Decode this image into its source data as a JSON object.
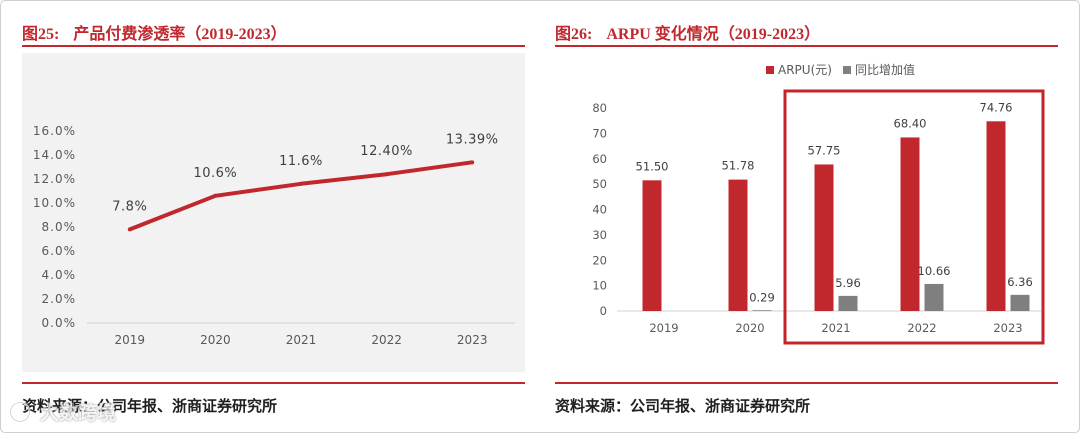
{
  "theme": {
    "accent": "#c0282d",
    "plot_background": "#f2f2f2",
    "text": "#1f1f1f"
  },
  "chart_data": [
    {
      "type": "line",
      "figure_label": "图25:",
      "title": "产品付费渗透率（2019-2023）",
      "source": "资料来源：公司年报、浙商证券研究所",
      "categories": [
        "2019",
        "2020",
        "2021",
        "2022",
        "2023"
      ],
      "ylim": [
        0,
        16
      ],
      "y_ticks": [
        {
          "value": 0,
          "label": "0.0%"
        },
        {
          "value": 2,
          "label": "2.0%"
        },
        {
          "value": 4,
          "label": "4.0%"
        },
        {
          "value": 6,
          "label": "6.0%"
        },
        {
          "value": 8,
          "label": "8.0%"
        },
        {
          "value": 10,
          "label": "10.0%"
        },
        {
          "value": 12,
          "label": "12.0%"
        },
        {
          "value": 14,
          "label": "14.0%"
        },
        {
          "value": 16,
          "label": "16.0%"
        }
      ],
      "grid": false,
      "legend": "none",
      "series": [
        {
          "color": "#c0282d",
          "values": [
            7.8,
            10.6,
            11.6,
            12.4,
            13.39
          ],
          "labels": [
            "7.8%",
            "10.6%",
            "11.6%",
            "12.40%",
            "13.39%"
          ]
        }
      ]
    },
    {
      "type": "bar",
      "figure_label": "图26:",
      "title": "ARPU 变化情况（2019-2023）",
      "source": "资料来源：公司年报、浙商证券研究所",
      "categories": [
        "2019",
        "2020",
        "2021",
        "2022",
        "2023"
      ],
      "ylim": [
        0,
        80
      ],
      "y_ticks": [
        {
          "value": 0,
          "label": "0"
        },
        {
          "value": 10,
          "label": "10"
        },
        {
          "value": 20,
          "label": "20"
        },
        {
          "value": 30,
          "label": "30"
        },
        {
          "value": 40,
          "label": "40"
        },
        {
          "value": 50,
          "label": "50"
        },
        {
          "value": 60,
          "label": "60"
        },
        {
          "value": 70,
          "label": "70"
        },
        {
          "value": 80,
          "label": "80"
        }
      ],
      "grid": false,
      "legend": "top",
      "series": [
        {
          "name": "ARPU(元)",
          "color": "#c0282d",
          "values": [
            51.5,
            51.78,
            57.75,
            68.4,
            74.76
          ],
          "labels": [
            "51.50",
            "51.78",
            "57.75",
            "68.40",
            "74.76"
          ]
        },
        {
          "name": "同比增加值",
          "color": "#7f7f7f",
          "values": [
            null,
            0.29,
            5.96,
            10.66,
            6.36
          ],
          "labels": [
            null,
            "0.29",
            "5.96",
            "10.66",
            "6.36"
          ]
        }
      ],
      "highlight": {
        "from_index": 2,
        "to_index": 4,
        "color": "#c3242a"
      }
    }
  ],
  "watermark": {
    "text": "大数跨境"
  }
}
